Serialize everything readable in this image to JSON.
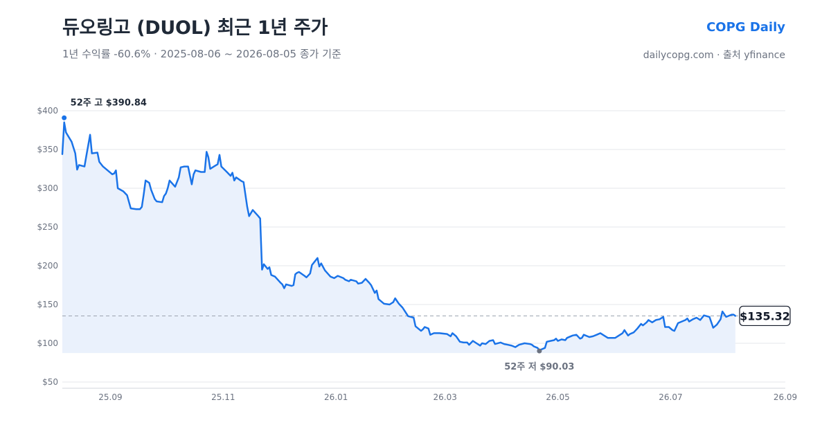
{
  "header": {
    "title": "듀오링고 (DUOL) 최근 1년 주가",
    "subtitle": "1년 수익률 -60.6%  ·  2025-08-06 ~ 2026-08-05 종가 기준",
    "brand": "COPG Daily",
    "source": "dailycopg.com · 출처 yfinance"
  },
  "colors": {
    "line": "#1a73e8",
    "area": "#eaf1fc",
    "grid": "#e5e7eb",
    "ref_line": "#9ca3af",
    "high_marker": "#1a73e8",
    "low_marker": "#6b7280"
  },
  "chart_data": {
    "type": "line",
    "title": "듀오링고 (DUOL) 최근 1년 주가",
    "xlabel": "",
    "ylabel": "",
    "x_ticks": [
      "25.09",
      "25.11",
      "26.01",
      "26.03",
      "26.05",
      "26.07",
      "26.09"
    ],
    "x_tick_dates": [
      "2025-09-01",
      "2025-11-01",
      "2026-01-01",
      "2026-03-01",
      "2026-05-01",
      "2026-07-01",
      "2026-09-01"
    ],
    "xlim": [
      "2025-08-06",
      "2026-09-01"
    ],
    "y_ticks": [
      "$50",
      "$100",
      "$150",
      "$200",
      "$250",
      "$300",
      "$350",
      "$400"
    ],
    "y_tick_values": [
      50,
      100,
      150,
      200,
      250,
      300,
      350,
      400
    ],
    "ylim": [
      50,
      400
    ],
    "grid": true,
    "fill_area": true,
    "series": [
      {
        "values": [
          [
            "2025-08-06",
            344
          ],
          [
            "2025-08-07",
            385
          ],
          [
            "2025-08-08",
            372
          ],
          [
            "2025-08-11",
            360
          ],
          [
            "2025-08-13",
            345
          ],
          [
            "2025-08-14",
            324
          ],
          [
            "2025-08-15",
            330
          ],
          [
            "2025-08-18",
            328
          ],
          [
            "2025-08-19",
            342
          ],
          [
            "2025-08-21",
            369
          ],
          [
            "2025-08-22",
            345
          ],
          [
            "2025-08-25",
            346
          ],
          [
            "2025-08-26",
            334
          ],
          [
            "2025-08-28",
            328
          ],
          [
            "2025-09-02",
            318
          ],
          [
            "2025-09-03",
            319
          ],
          [
            "2025-09-04",
            323
          ],
          [
            "2025-09-05",
            300
          ],
          [
            "2025-09-08",
            296
          ],
          [
            "2025-09-10",
            291
          ],
          [
            "2025-09-12",
            274
          ],
          [
            "2025-09-15",
            273
          ],
          [
            "2025-09-17",
            273
          ],
          [
            "2025-09-18",
            276
          ],
          [
            "2025-09-19",
            292
          ],
          [
            "2025-09-20",
            310
          ],
          [
            "2025-09-22",
            307
          ],
          [
            "2025-09-23",
            298
          ],
          [
            "2025-09-25",
            286
          ],
          [
            "2025-09-26",
            283
          ],
          [
            "2025-09-29",
            282
          ],
          [
            "2025-09-30",
            290
          ],
          [
            "2025-10-01",
            293
          ],
          [
            "2025-10-02",
            300
          ],
          [
            "2025-10-03",
            310
          ],
          [
            "2025-10-06",
            302
          ],
          [
            "2025-10-08",
            314
          ],
          [
            "2025-10-09",
            327
          ],
          [
            "2025-10-11",
            328
          ],
          [
            "2025-10-13",
            328
          ],
          [
            "2025-10-15",
            305
          ],
          [
            "2025-10-16",
            318
          ],
          [
            "2025-10-17",
            323
          ],
          [
            "2025-10-20",
            321
          ],
          [
            "2025-10-22",
            321
          ],
          [
            "2025-10-23",
            347
          ],
          [
            "2025-10-24",
            340
          ],
          [
            "2025-10-25",
            325
          ],
          [
            "2025-10-27",
            328
          ],
          [
            "2025-10-29",
            331
          ],
          [
            "2025-10-30",
            343
          ],
          [
            "2025-10-31",
            328
          ],
          [
            "2025-11-03",
            321
          ],
          [
            "2025-11-05",
            316
          ],
          [
            "2025-11-06",
            320
          ],
          [
            "2025-11-07",
            310
          ],
          [
            "2025-11-08",
            314
          ],
          [
            "2025-11-11",
            309
          ],
          [
            "2025-11-12",
            308
          ],
          [
            "2025-11-14",
            276
          ],
          [
            "2025-11-15",
            264
          ],
          [
            "2025-11-17",
            272
          ],
          [
            "2025-11-20",
            264
          ],
          [
            "2025-11-21",
            261
          ],
          [
            "2025-11-22",
            195
          ],
          [
            "2025-11-23",
            202
          ],
          [
            "2025-11-25",
            196
          ],
          [
            "2025-11-26",
            198
          ],
          [
            "2025-11-27",
            188
          ],
          [
            "2025-11-29",
            186
          ],
          [
            "2025-12-02",
            178
          ],
          [
            "2025-12-03",
            176
          ],
          [
            "2025-12-04",
            171
          ],
          [
            "2025-12-05",
            176
          ],
          [
            "2025-12-08",
            174
          ],
          [
            "2025-12-09",
            175
          ],
          [
            "2025-12-10",
            189
          ],
          [
            "2025-12-11",
            191
          ],
          [
            "2025-12-12",
            192
          ],
          [
            "2025-12-15",
            187
          ],
          [
            "2025-12-16",
            185
          ],
          [
            "2025-12-18",
            190
          ],
          [
            "2025-12-19",
            201
          ],
          [
            "2025-12-22",
            210
          ],
          [
            "2025-12-23",
            199
          ],
          [
            "2025-12-24",
            203
          ],
          [
            "2025-12-26",
            194
          ],
          [
            "2025-12-29",
            186
          ],
          [
            "2025-12-31",
            184
          ],
          [
            "2026-01-02",
            187
          ],
          [
            "2026-01-05",
            184
          ],
          [
            "2026-01-06",
            182
          ],
          [
            "2026-01-08",
            180
          ],
          [
            "2026-01-09",
            182
          ],
          [
            "2026-01-12",
            180
          ],
          [
            "2026-01-13",
            177
          ],
          [
            "2026-01-15",
            178
          ],
          [
            "2026-01-17",
            183
          ],
          [
            "2026-01-19",
            178
          ],
          [
            "2026-01-20",
            175
          ],
          [
            "2026-01-22",
            165
          ],
          [
            "2026-01-23",
            168
          ],
          [
            "2026-01-24",
            157
          ],
          [
            "2026-01-27",
            151
          ],
          [
            "2026-01-30",
            150
          ],
          [
            "2026-02-01",
            153
          ],
          [
            "2026-02-02",
            158
          ],
          [
            "2026-02-04",
            151
          ],
          [
            "2026-02-06",
            146
          ],
          [
            "2026-02-09",
            135
          ],
          [
            "2026-02-12",
            133
          ],
          [
            "2026-02-13",
            122
          ],
          [
            "2026-02-16",
            116
          ],
          [
            "2026-02-17",
            118
          ],
          [
            "2026-02-18",
            121
          ],
          [
            "2026-02-20",
            119
          ],
          [
            "2026-02-21",
            111
          ],
          [
            "2026-02-23",
            113
          ],
          [
            "2026-02-26",
            113
          ],
          [
            "2026-03-02",
            112
          ],
          [
            "2026-03-04",
            109
          ],
          [
            "2026-03-05",
            113
          ],
          [
            "2026-03-07",
            109
          ],
          [
            "2026-03-09",
            102
          ],
          [
            "2026-03-11",
            101
          ],
          [
            "2026-03-13",
            101
          ],
          [
            "2026-03-14",
            98
          ],
          [
            "2026-03-16",
            103
          ],
          [
            "2026-03-18",
            100
          ],
          [
            "2026-03-20",
            97
          ],
          [
            "2026-03-21",
            100
          ],
          [
            "2026-03-23",
            99
          ],
          [
            "2026-03-25",
            103
          ],
          [
            "2026-03-27",
            104
          ],
          [
            "2026-03-28",
            99
          ],
          [
            "2026-03-31",
            101
          ],
          [
            "2026-04-02",
            99
          ],
          [
            "2026-04-04",
            98
          ],
          [
            "2026-04-06",
            97
          ],
          [
            "2026-04-08",
            95
          ],
          [
            "2026-04-10",
            98
          ],
          [
            "2026-04-13",
            100
          ],
          [
            "2026-04-16",
            99
          ],
          [
            "2026-04-17",
            98
          ],
          [
            "2026-04-18",
            96
          ],
          [
            "2026-04-20",
            94
          ],
          [
            "2026-04-21",
            91
          ],
          [
            "2026-04-24",
            94
          ],
          [
            "2026-04-25",
            102
          ],
          [
            "2026-04-27",
            103
          ],
          [
            "2026-04-29",
            104
          ],
          [
            "2026-04-30",
            106
          ],
          [
            "2026-05-01",
            103
          ],
          [
            "2026-05-03",
            105
          ],
          [
            "2026-05-05",
            104
          ],
          [
            "2026-05-06",
            107
          ],
          [
            "2026-05-09",
            110
          ],
          [
            "2026-05-11",
            111
          ],
          [
            "2026-05-13",
            106
          ],
          [
            "2026-05-14",
            107
          ],
          [
            "2026-05-15",
            111
          ],
          [
            "2026-05-18",
            108
          ],
          [
            "2026-05-20",
            109
          ],
          [
            "2026-05-22",
            111
          ],
          [
            "2026-05-24",
            113
          ],
          [
            "2026-05-26",
            110
          ],
          [
            "2026-05-28",
            107
          ],
          [
            "2026-06-01",
            107
          ],
          [
            "2026-06-03",
            110
          ],
          [
            "2026-06-05",
            113
          ],
          [
            "2026-06-06",
            117
          ],
          [
            "2026-06-08",
            110
          ],
          [
            "2026-06-09",
            112
          ],
          [
            "2026-06-11",
            114
          ],
          [
            "2026-06-13",
            119
          ],
          [
            "2026-06-15",
            125
          ],
          [
            "2026-06-16",
            123
          ],
          [
            "2026-06-18",
            127
          ],
          [
            "2026-06-19",
            130
          ],
          [
            "2026-06-21",
            127
          ],
          [
            "2026-06-23",
            130
          ],
          [
            "2026-06-25",
            131
          ],
          [
            "2026-06-27",
            134
          ],
          [
            "2026-06-28",
            121
          ],
          [
            "2026-06-30",
            121
          ],
          [
            "2026-07-02",
            117
          ],
          [
            "2026-07-03",
            116
          ],
          [
            "2026-07-05",
            126
          ],
          [
            "2026-07-07",
            128
          ],
          [
            "2026-07-09",
            130
          ],
          [
            "2026-07-10",
            132
          ],
          [
            "2026-07-11",
            128
          ],
          [
            "2026-07-13",
            131
          ],
          [
            "2026-07-15",
            133
          ],
          [
            "2026-07-17",
            130
          ],
          [
            "2026-07-19",
            136
          ],
          [
            "2026-07-22",
            134
          ],
          [
            "2026-07-24",
            120
          ],
          [
            "2026-07-26",
            124
          ],
          [
            "2026-07-28",
            131
          ],
          [
            "2026-07-29",
            141
          ],
          [
            "2026-07-31",
            134
          ],
          [
            "2026-08-03",
            137
          ],
          [
            "2026-08-04",
            137
          ],
          [
            "2026-08-05",
            135.32
          ]
        ]
      }
    ],
    "annotations": {
      "high": {
        "date": "2025-08-07",
        "value": 390.84,
        "label": "52주 고 $390.84"
      },
      "low": {
        "date": "2026-04-21",
        "value": 90.03,
        "label": "52주 저 $90.03"
      },
      "last": {
        "date": "2026-08-05",
        "value": 135.32,
        "label": "$135.32"
      }
    }
  }
}
